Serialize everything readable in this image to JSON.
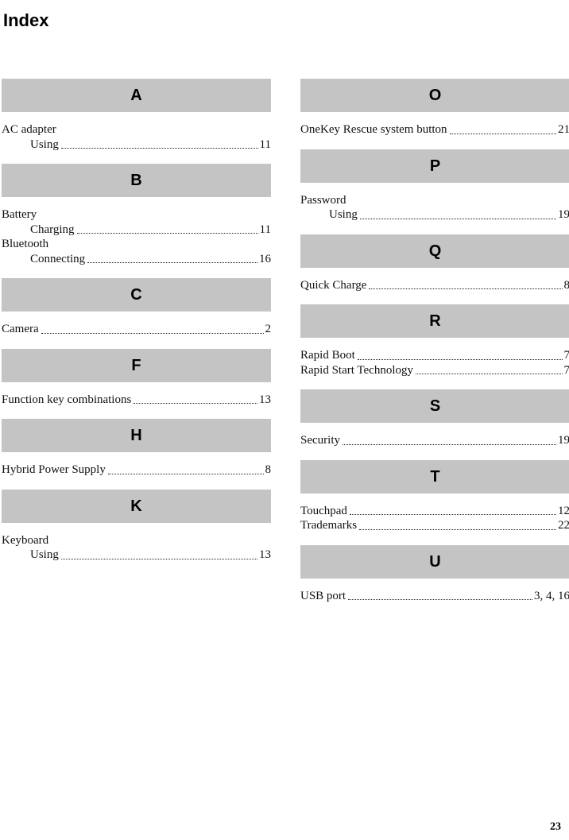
{
  "page_title": "Index",
  "page_number": "23",
  "colors": {
    "header_bar": "#c4c4c4",
    "text": "#111111"
  },
  "columns": [
    {
      "side": "left",
      "sections": [
        {
          "letter": "A",
          "entries": [
            {
              "label": "AC adapter",
              "indent": 0,
              "page": ""
            },
            {
              "label": "Using",
              "indent": 1,
              "page": "11"
            }
          ]
        },
        {
          "letter": "B",
          "entries": [
            {
              "label": "Battery",
              "indent": 0,
              "page": ""
            },
            {
              "label": "Charging",
              "indent": 1,
              "page": "11"
            },
            {
              "label": "Bluetooth",
              "indent": 0,
              "page": ""
            },
            {
              "label": "Connecting",
              "indent": 1,
              "page": "16"
            }
          ]
        },
        {
          "letter": "C",
          "entries": [
            {
              "label": "Camera",
              "indent": 0,
              "page": "2"
            }
          ]
        },
        {
          "letter": "F",
          "entries": [
            {
              "label": "Function key combinations",
              "indent": 0,
              "page": "13"
            }
          ]
        },
        {
          "letter": "H",
          "entries": [
            {
              "label": "Hybrid Power Supply",
              "indent": 0,
              "page": "8"
            }
          ]
        },
        {
          "letter": "K",
          "entries": [
            {
              "label": "Keyboard",
              "indent": 0,
              "page": ""
            },
            {
              "label": "Using",
              "indent": 1,
              "page": "13"
            }
          ]
        }
      ]
    },
    {
      "side": "right",
      "sections": [
        {
          "letter": "O",
          "entries": [
            {
              "label": "OneKey Rescue system button",
              "indent": 0,
              "page": "21"
            }
          ]
        },
        {
          "letter": "P",
          "entries": [
            {
              "label": "Password",
              "indent": 0,
              "page": ""
            },
            {
              "label": "Using",
              "indent": 1,
              "page": "19"
            }
          ]
        },
        {
          "letter": "Q",
          "entries": [
            {
              "label": "Quick Charge",
              "indent": 0,
              "page": "8"
            }
          ]
        },
        {
          "letter": "R",
          "entries": [
            {
              "label": "Rapid Boot",
              "indent": 0,
              "page": "7"
            },
            {
              "label": "Rapid Start Technology",
              "indent": 0,
              "page": "7"
            }
          ]
        },
        {
          "letter": "S",
          "entries": [
            {
              "label": "Security",
              "indent": 0,
              "page": "19"
            }
          ]
        },
        {
          "letter": "T",
          "entries": [
            {
              "label": "Touchpad",
              "indent": 0,
              "page": "12"
            },
            {
              "label": "Trademarks",
              "indent": 0,
              "page": "22"
            }
          ]
        },
        {
          "letter": "U",
          "entries": [
            {
              "label": "USB port",
              "indent": 0,
              "page": "3, 4, 16"
            }
          ]
        }
      ]
    }
  ]
}
